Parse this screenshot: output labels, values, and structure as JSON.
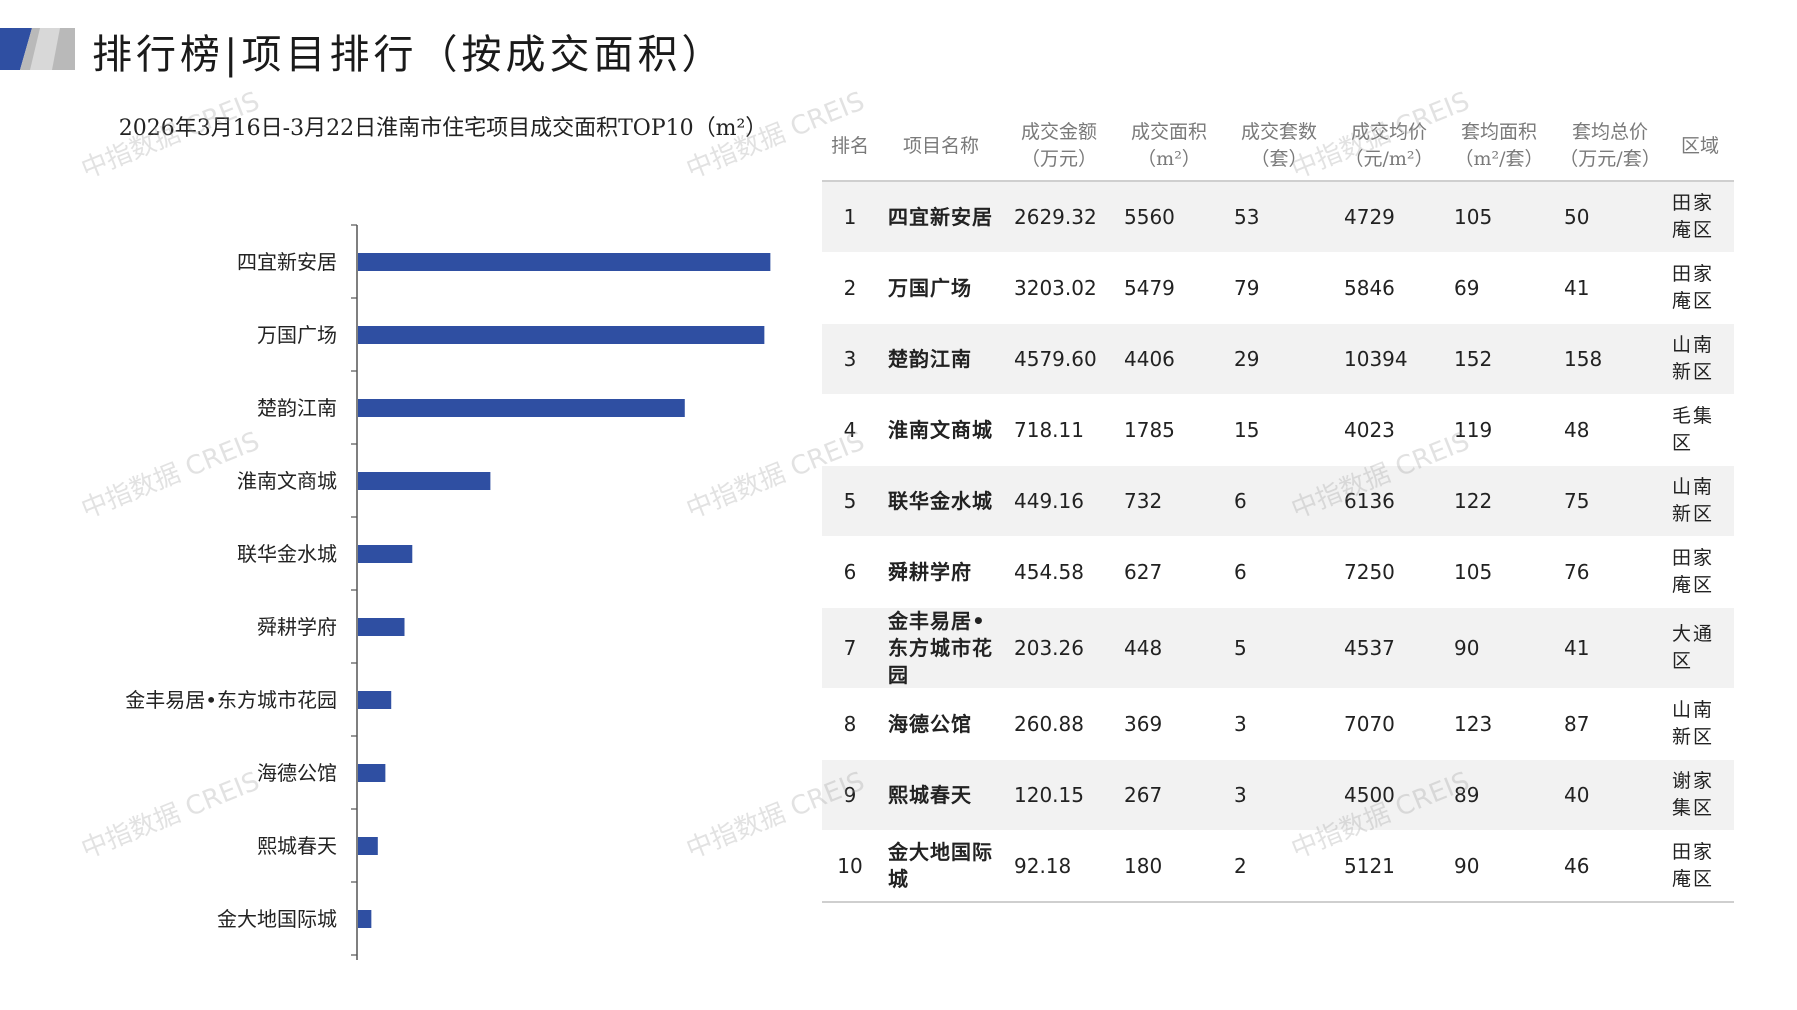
{
  "header": {
    "title": "排行榜|项目排行（按成交面积）"
  },
  "chart_data": {
    "type": "bar",
    "orientation": "horizontal",
    "title": "2026年3月16日-3月22日淮南市住宅项目成交面积TOP10（m²）",
    "categories": [
      "四宜新安居",
      "万国广场",
      "楚韵江南",
      "淮南文商城",
      "联华金水城",
      "舜耕学府",
      "金丰易居•东方城市花园",
      "海德公馆",
      "熙城春天",
      "金大地国际城"
    ],
    "values": [
      5560,
      5479,
      4406,
      1785,
      732,
      627,
      448,
      369,
      267,
      180
    ],
    "xlabel": "",
    "ylabel": "",
    "xlim": [
      0,
      6000
    ],
    "bar_color": "#2f4fa2",
    "grid": false,
    "legend": "none"
  },
  "table": {
    "headers": [
      [
        "排名",
        ""
      ],
      [
        "项目名称",
        ""
      ],
      [
        "成交金额",
        "（万元）"
      ],
      [
        "成交面积",
        "（m²）"
      ],
      [
        "成交套数",
        "（套）"
      ],
      [
        "成交均价",
        "（元/m²）"
      ],
      [
        "套均面积",
        "（m²/套）"
      ],
      [
        "套均总价",
        "（万元/套）"
      ],
      [
        "区域",
        ""
      ]
    ],
    "rows": [
      [
        "1",
        "四宜新安居",
        "2629.32",
        "5560",
        "53",
        "4729",
        "105",
        "50",
        "田家庵区"
      ],
      [
        "2",
        "万国广场",
        "3203.02",
        "5479",
        "79",
        "5846",
        "69",
        "41",
        "田家庵区"
      ],
      [
        "3",
        "楚韵江南",
        "4579.60",
        "4406",
        "29",
        "10394",
        "152",
        "158",
        "山南新区"
      ],
      [
        "4",
        "淮南文商城",
        "718.11",
        "1785",
        "15",
        "4023",
        "119",
        "48",
        "毛集区"
      ],
      [
        "5",
        "联华金水城",
        "449.16",
        "732",
        "6",
        "6136",
        "122",
        "75",
        "山南新区"
      ],
      [
        "6",
        "舜耕学府",
        "454.58",
        "627",
        "6",
        "7250",
        "105",
        "76",
        "田家庵区"
      ],
      [
        "7",
        "金丰易居•东方城市花园",
        "203.26",
        "448",
        "5",
        "4537",
        "90",
        "41",
        "大通区"
      ],
      [
        "8",
        "海德公馆",
        "260.88",
        "369",
        "3",
        "7070",
        "123",
        "87",
        "山南新区"
      ],
      [
        "9",
        "熙城春天",
        "120.15",
        "267",
        "3",
        "4500",
        "89",
        "40",
        "谢家集区"
      ],
      [
        "10",
        "金大地国际城",
        "92.18",
        "180",
        "2",
        "5121",
        "90",
        "46",
        "田家庵区"
      ]
    ]
  },
  "watermark": "中指数据 CREIS",
  "colors": {
    "bar": "#2f4fa2",
    "logo_blue": "#2f4fa2",
    "logo_gray": "#b9b9b9",
    "row_alt": "#f2f2f2"
  }
}
